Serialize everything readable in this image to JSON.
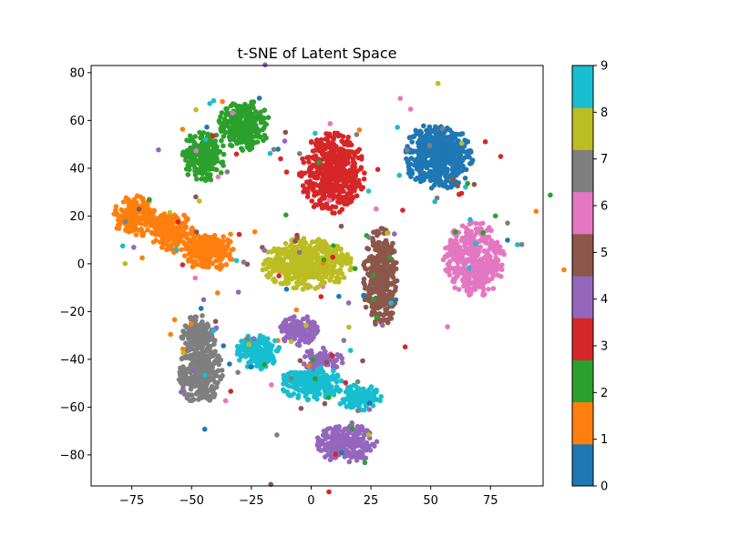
{
  "chart_data": {
    "type": "scatter",
    "title": "t-SNE of Latent Space",
    "xlabel": "",
    "ylabel": "",
    "xlim": [
      -92,
      97
    ],
    "ylim": [
      -93,
      83
    ],
    "xticks": [
      -75,
      -50,
      -25,
      0,
      25,
      50,
      75
    ],
    "yticks": [
      -80,
      -60,
      -40,
      -20,
      0,
      20,
      40,
      60,
      80
    ],
    "grid": false,
    "colorbar": {
      "range": [
        0,
        9
      ],
      "ticks": [
        0,
        1,
        2,
        3,
        4,
        5,
        6,
        7,
        8,
        9
      ],
      "colors": [
        "#1f77b4",
        "#ff7f0e",
        "#2ca02c",
        "#d62728",
        "#9467bd",
        "#8c564b",
        "#e377c2",
        "#7f7f7f",
        "#bcbd22",
        "#17becf"
      ]
    },
    "clusters": [
      {
        "label": 0,
        "blobs": [
          [
            53,
            45,
            14,
            13,
            520
          ]
        ]
      },
      {
        "label": 1,
        "blobs": [
          [
            -73,
            20,
            10,
            8,
            180
          ],
          [
            -58,
            13,
            9,
            8,
            200
          ],
          [
            -43,
            5,
            10,
            8,
            220
          ]
        ]
      },
      {
        "label": 2,
        "blobs": [
          [
            -45,
            45,
            9,
            10,
            230
          ],
          [
            -28,
            58,
            10,
            10,
            270
          ]
        ]
      },
      {
        "label": 3,
        "blobs": [
          [
            9,
            38,
            13,
            16,
            480
          ]
        ]
      },
      {
        "label": 4,
        "blobs": [
          [
            -5,
            -28,
            8,
            6,
            130
          ],
          [
            5,
            -40,
            8,
            5,
            90
          ],
          [
            15,
            -75,
            12,
            8,
            230
          ]
        ]
      },
      {
        "label": 5,
        "blobs": [
          [
            29,
            -6,
            7,
            20,
            380
          ]
        ]
      },
      {
        "label": 6,
        "blobs": [
          [
            68,
            2,
            12,
            15,
            400
          ]
        ]
      },
      {
        "label": 7,
        "blobs": [
          [
            -47,
            -30,
            7,
            8,
            160
          ],
          [
            -46,
            -46,
            9,
            12,
            260
          ]
        ]
      },
      {
        "label": 8,
        "blobs": [
          [
            -2,
            0,
            18,
            10,
            500
          ]
        ]
      },
      {
        "label": 9,
        "blobs": [
          [
            -22,
            -37,
            9,
            7,
            180
          ],
          [
            0,
            -50,
            12,
            7,
            220
          ],
          [
            20,
            -56,
            9,
            5,
            130
          ]
        ]
      }
    ]
  }
}
